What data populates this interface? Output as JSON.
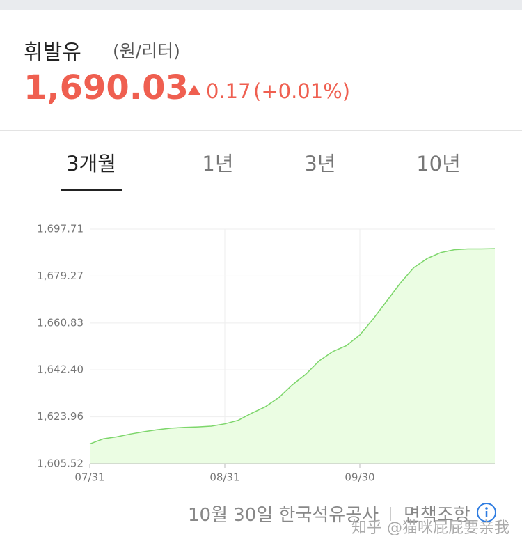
{
  "header": {
    "title": "휘발유",
    "unit": "(원/리터)",
    "price": "1,690.03",
    "change": "0.17",
    "change_pct": "(+0.01%)"
  },
  "tabs": [
    "3개월",
    "1년",
    "3년",
    "10년"
  ],
  "chart_data": {
    "type": "area",
    "color": "#7dd66b",
    "fill": "#ebfde3",
    "grid": true,
    "categories": [
      "07/31",
      null,
      null,
      null,
      null,
      null,
      null,
      null,
      null,
      null,
      "08/31",
      null,
      null,
      null,
      null,
      null,
      null,
      null,
      null,
      null,
      "09/30",
      null,
      null,
      null,
      null,
      null,
      null,
      null,
      null,
      null,
      null
    ],
    "values": [
      1613.3,
      1615.3,
      1616.1,
      1617.2,
      1618.1,
      1618.9,
      1619.5,
      1619.8,
      1620.0,
      1620.3,
      1621.2,
      1622.6,
      1625.4,
      1627.9,
      1631.5,
      1636.5,
      1640.7,
      1646.0,
      1649.6,
      1651.9,
      1656.1,
      1662.5,
      1669.5,
      1676.5,
      1682.6,
      1686.2,
      1688.5,
      1689.6,
      1689.9,
      1689.9,
      1690.03
    ],
    "ylim": [
      1605.52,
      1697.71
    ],
    "yticks": [
      {
        "value": 1605.52,
        "label": "1,605.52"
      },
      {
        "value": 1623.96,
        "label": "1,623.96"
      },
      {
        "value": 1642.4,
        "label": "1,642.40"
      },
      {
        "value": 1660.83,
        "label": "1,660.83"
      },
      {
        "value": 1679.27,
        "label": "1,679.27"
      },
      {
        "value": 1697.71,
        "label": "1,697.71"
      }
    ]
  },
  "footer": {
    "source": "10월 30일 한국석유공사",
    "disclaimer": "면책조항",
    "watermark": "知乎 @猫咪屁屁要亲我"
  }
}
